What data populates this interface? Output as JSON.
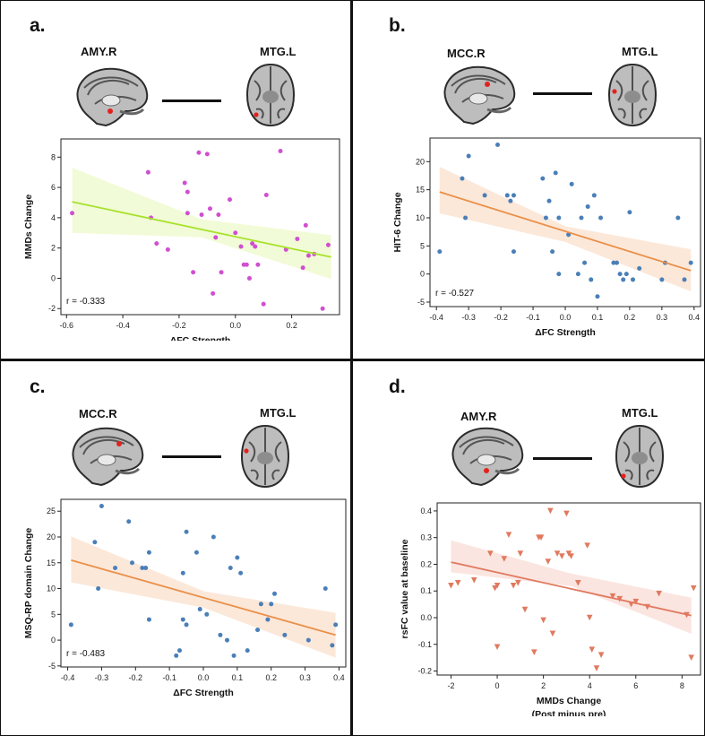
{
  "colors": {
    "magenta_points": "#d04fd0",
    "lime_line": "#a6e22a",
    "lime_band": "#eef9c9",
    "blue_points": "#4a7fb8",
    "orange_line": "#e9904a",
    "orange_band": "#fbe0cc",
    "coral_line": "#e07a5f",
    "coral_band": "#f9dcd6",
    "brain_marker": "#e3221c"
  },
  "panels": [
    {
      "letter": "a.",
      "region_left": "AMY.R",
      "region_right": "MTG.L"
    },
    {
      "letter": "b.",
      "region_left": "MCC.R",
      "region_right": "MTG.L"
    },
    {
      "letter": "c.",
      "region_left": "MCC.R",
      "region_right": "MTG.L"
    },
    {
      "letter": "d.",
      "region_left": "AMY.R",
      "region_right": "MTG.L"
    }
  ],
  "chart_data": [
    {
      "type": "scatter",
      "id": "a",
      "xlabel": "ΔFC Strength",
      "xlabel2": "",
      "ylabel": "MMDs Change",
      "annotation": "r = -0.333",
      "xlim": [
        -0.62,
        0.37
      ],
      "ylim": [
        -2.4,
        9.2
      ],
      "xticks": [
        -0.6,
        -0.4,
        -0.2,
        0.0,
        0.2
      ],
      "xticklabels": [
        "-0.6",
        "-0.4",
        "-0.2",
        "0.0",
        "0.2"
      ],
      "yticks": [
        -2,
        0,
        2,
        4,
        6,
        8
      ],
      "yticklabels": [
        "-2",
        "0",
        "2",
        "4",
        "6",
        "8"
      ],
      "marker": "circle",
      "point_color": "magenta_points",
      "line_color": "lime_line",
      "band_color": "lime_band",
      "fit": {
        "x0": -0.58,
        "y0": 5.05,
        "x1": 0.34,
        "y1": 1.4
      },
      "band": {
        "lo0": 3.0,
        "hi0": 7.3,
        "lom": 2.7,
        "him": 3.9,
        "lo1": -0.05,
        "hi1": 2.85
      },
      "x": [
        -0.58,
        -0.31,
        -0.3,
        -0.28,
        -0.24,
        -0.18,
        -0.17,
        -0.17,
        -0.15,
        -0.13,
        -0.12,
        -0.1,
        -0.09,
        -0.08,
        -0.07,
        -0.06,
        -0.05,
        -0.02,
        0.0,
        0.02,
        0.03,
        0.04,
        0.05,
        0.06,
        0.07,
        0.08,
        0.1,
        0.11,
        0.16,
        0.18,
        0.22,
        0.24,
        0.25,
        0.26,
        0.28,
        0.31,
        0.33
      ],
      "y": [
        4.3,
        7.0,
        4.0,
        2.3,
        1.9,
        6.3,
        5.7,
        4.3,
        0.4,
        8.3,
        4.2,
        8.2,
        4.6,
        -1.0,
        2.7,
        4.2,
        0.4,
        5.2,
        3.0,
        2.1,
        0.9,
        0.9,
        0.0,
        2.3,
        2.1,
        0.9,
        -1.7,
        5.5,
        8.4,
        1.9,
        2.6,
        0.7,
        3.5,
        1.5,
        1.6,
        -2.0,
        2.2
      ]
    },
    {
      "type": "scatter",
      "id": "b",
      "xlabel": "ΔFC Strength",
      "xlabel2": "",
      "ylabel": "HIT-6 Change",
      "annotation": "r = -0.527",
      "xlim": [
        -0.42,
        0.42
      ],
      "ylim": [
        -5.8,
        24.2
      ],
      "xticks": [
        -0.4,
        -0.3,
        -0.2,
        -0.1,
        0.0,
        0.1,
        0.2,
        0.3,
        0.4
      ],
      "xticklabels": [
        "-0.4",
        "-0.3",
        "-0.2",
        "-0.1",
        "0.0",
        "0.1",
        "0.2",
        "0.3",
        "0.4"
      ],
      "yticks": [
        -5,
        0,
        5,
        10,
        15,
        20
      ],
      "yticklabels": [
        "-5",
        "0",
        "5",
        "10",
        "15",
        "20"
      ],
      "marker": "circle",
      "point_color": "blue_points",
      "line_color": "orange_line",
      "band_color": "orange_band",
      "fit": {
        "x0": -0.39,
        "y0": 14.6,
        "x1": 0.39,
        "y1": 0.6
      },
      "band": {
        "lo0": 10.8,
        "hi0": 19.1,
        "lom": 5.7,
        "him": 8.5,
        "lo1": -3.1,
        "hi1": 4.4
      },
      "x": [
        -0.39,
        -0.32,
        -0.31,
        -0.3,
        -0.25,
        -0.21,
        -0.18,
        -0.17,
        -0.16,
        -0.16,
        -0.07,
        -0.06,
        -0.05,
        -0.04,
        -0.03,
        -0.02,
        -0.02,
        0.01,
        0.02,
        0.04,
        0.05,
        0.06,
        0.07,
        0.08,
        0.09,
        0.1,
        0.11,
        0.15,
        0.16,
        0.17,
        0.18,
        0.19,
        0.2,
        0.21,
        0.23,
        0.3,
        0.31,
        0.35,
        0.37,
        0.39
      ],
      "y": [
        4.0,
        17.0,
        10.0,
        21.0,
        14.0,
        23.0,
        14.0,
        13.0,
        4.0,
        14.0,
        17.0,
        10.0,
        13.0,
        4.0,
        18.0,
        10.0,
        0.0,
        7.0,
        16.0,
        0.0,
        10.0,
        2.0,
        12.0,
        -1.0,
        14.0,
        -4.0,
        10.0,
        2.0,
        2.0,
        0.0,
        -1.0,
        0.0,
        11.0,
        -1.0,
        1.0,
        -1.0,
        2.0,
        10.0,
        -1.0,
        2.0
      ]
    },
    {
      "type": "scatter",
      "id": "c",
      "xlabel": "ΔFC Strength",
      "xlabel2": "",
      "ylabel": "MSQ-RP domain Change",
      "annotation": "r = -0.483",
      "xlim": [
        -0.42,
        0.42
      ],
      "ylim": [
        -5.2,
        27.3
      ],
      "xticks": [
        -0.4,
        -0.3,
        -0.2,
        -0.1,
        0.0,
        0.1,
        0.2,
        0.3,
        0.4
      ],
      "xticklabels": [
        "-0.4",
        "-0.3",
        "-0.2",
        "-0.1",
        "0.0",
        "0.1",
        "0.2",
        "0.3",
        "0.4"
      ],
      "yticks": [
        -5,
        0,
        5,
        10,
        15,
        20,
        25
      ],
      "yticklabels": [
        "-5",
        "0",
        "5",
        "10",
        "15",
        "20",
        "25"
      ],
      "marker": "circle",
      "point_color": "blue_points",
      "line_color": "orange_line",
      "band_color": "orange_band",
      "fit": {
        "x0": -0.39,
        "y0": 15.5,
        "x1": 0.39,
        "y1": 1.0
      },
      "band": {
        "lo0": 11.2,
        "hi0": 20.1,
        "lom": 6.3,
        "him": 9.5,
        "lo1": -3.4,
        "hi1": 5.3
      },
      "x": [
        -0.39,
        -0.32,
        -0.31,
        -0.3,
        -0.26,
        -0.22,
        -0.21,
        -0.18,
        -0.17,
        -0.16,
        -0.16,
        -0.08,
        -0.07,
        -0.06,
        -0.06,
        -0.05,
        -0.05,
        -0.02,
        -0.01,
        0.01,
        0.03,
        0.05,
        0.07,
        0.08,
        0.09,
        0.1,
        0.11,
        0.13,
        0.16,
        0.17,
        0.19,
        0.2,
        0.21,
        0.24,
        0.31,
        0.36,
        0.38,
        0.39
      ],
      "y": [
        3.0,
        19.0,
        10.0,
        26.0,
        14.0,
        23.0,
        15.0,
        14.0,
        14.0,
        17.0,
        4.0,
        -3.0,
        -2.0,
        4.0,
        13.0,
        3.0,
        21.0,
        17.0,
        6.0,
        5.0,
        20.0,
        1.0,
        0.0,
        14.0,
        -3.0,
        16.0,
        13.0,
        -2.0,
        2.0,
        7.0,
        4.0,
        7.0,
        9.0,
        1.0,
        0.0,
        10.0,
        -1.0,
        3.0
      ]
    },
    {
      "type": "scatter",
      "id": "d",
      "xlabel": "MMDs Change",
      "xlabel2": "(Post minus pre)",
      "ylabel": "rsFC value at baseline",
      "annotation": "",
      "xlim": [
        -2.6,
        8.8
      ],
      "ylim": [
        -0.215,
        0.43
      ],
      "xticks": [
        -2,
        0,
        2,
        4,
        6,
        8
      ],
      "xticklabels": [
        "-2",
        "0",
        "2",
        "4",
        "6",
        "8"
      ],
      "yticks": [
        -0.2,
        -0.1,
        0.0,
        0.1,
        0.2,
        0.3,
        0.4
      ],
      "yticklabels": [
        "-0.2",
        "-0.1",
        "0.0",
        "0.1",
        "0.2",
        "0.3",
        "0.4"
      ],
      "marker": "triangle-down",
      "point_color": "coral_line",
      "line_color": "coral_line",
      "band_color": "coral_band",
      "fit": {
        "x0": -2.0,
        "y0": 0.208,
        "x1": 8.4,
        "y1": 0.008
      },
      "band": {
        "lo0": 0.17,
        "hi0": 0.29,
        "lom": 0.118,
        "him": 0.165,
        "lo1": -0.06,
        "hi1": 0.075
      },
      "x": [
        -2.0,
        -1.7,
        -1.0,
        -0.3,
        -0.1,
        0.0,
        0.0,
        0.3,
        0.5,
        0.7,
        0.9,
        1.0,
        1.2,
        1.6,
        1.8,
        1.9,
        2.0,
        2.2,
        2.3,
        2.4,
        2.6,
        2.8,
        3.0,
        3.1,
        3.2,
        3.5,
        3.9,
        4.0,
        4.1,
        4.3,
        4.5,
        5.0,
        5.3,
        5.8,
        6.0,
        6.5,
        7.0,
        8.2,
        8.4,
        8.5
      ],
      "y": [
        0.12,
        0.13,
        0.14,
        0.24,
        0.11,
        -0.11,
        0.12,
        0.22,
        0.31,
        0.12,
        0.13,
        0.24,
        0.03,
        -0.13,
        0.3,
        0.3,
        -0.01,
        0.21,
        0.4,
        -0.06,
        0.24,
        0.23,
        0.39,
        0.24,
        0.23,
        0.13,
        0.27,
        0.0,
        -0.12,
        -0.19,
        -0.14,
        0.08,
        0.07,
        0.05,
        0.06,
        0.04,
        0.09,
        0.01,
        -0.15,
        0.11
      ]
    }
  ]
}
